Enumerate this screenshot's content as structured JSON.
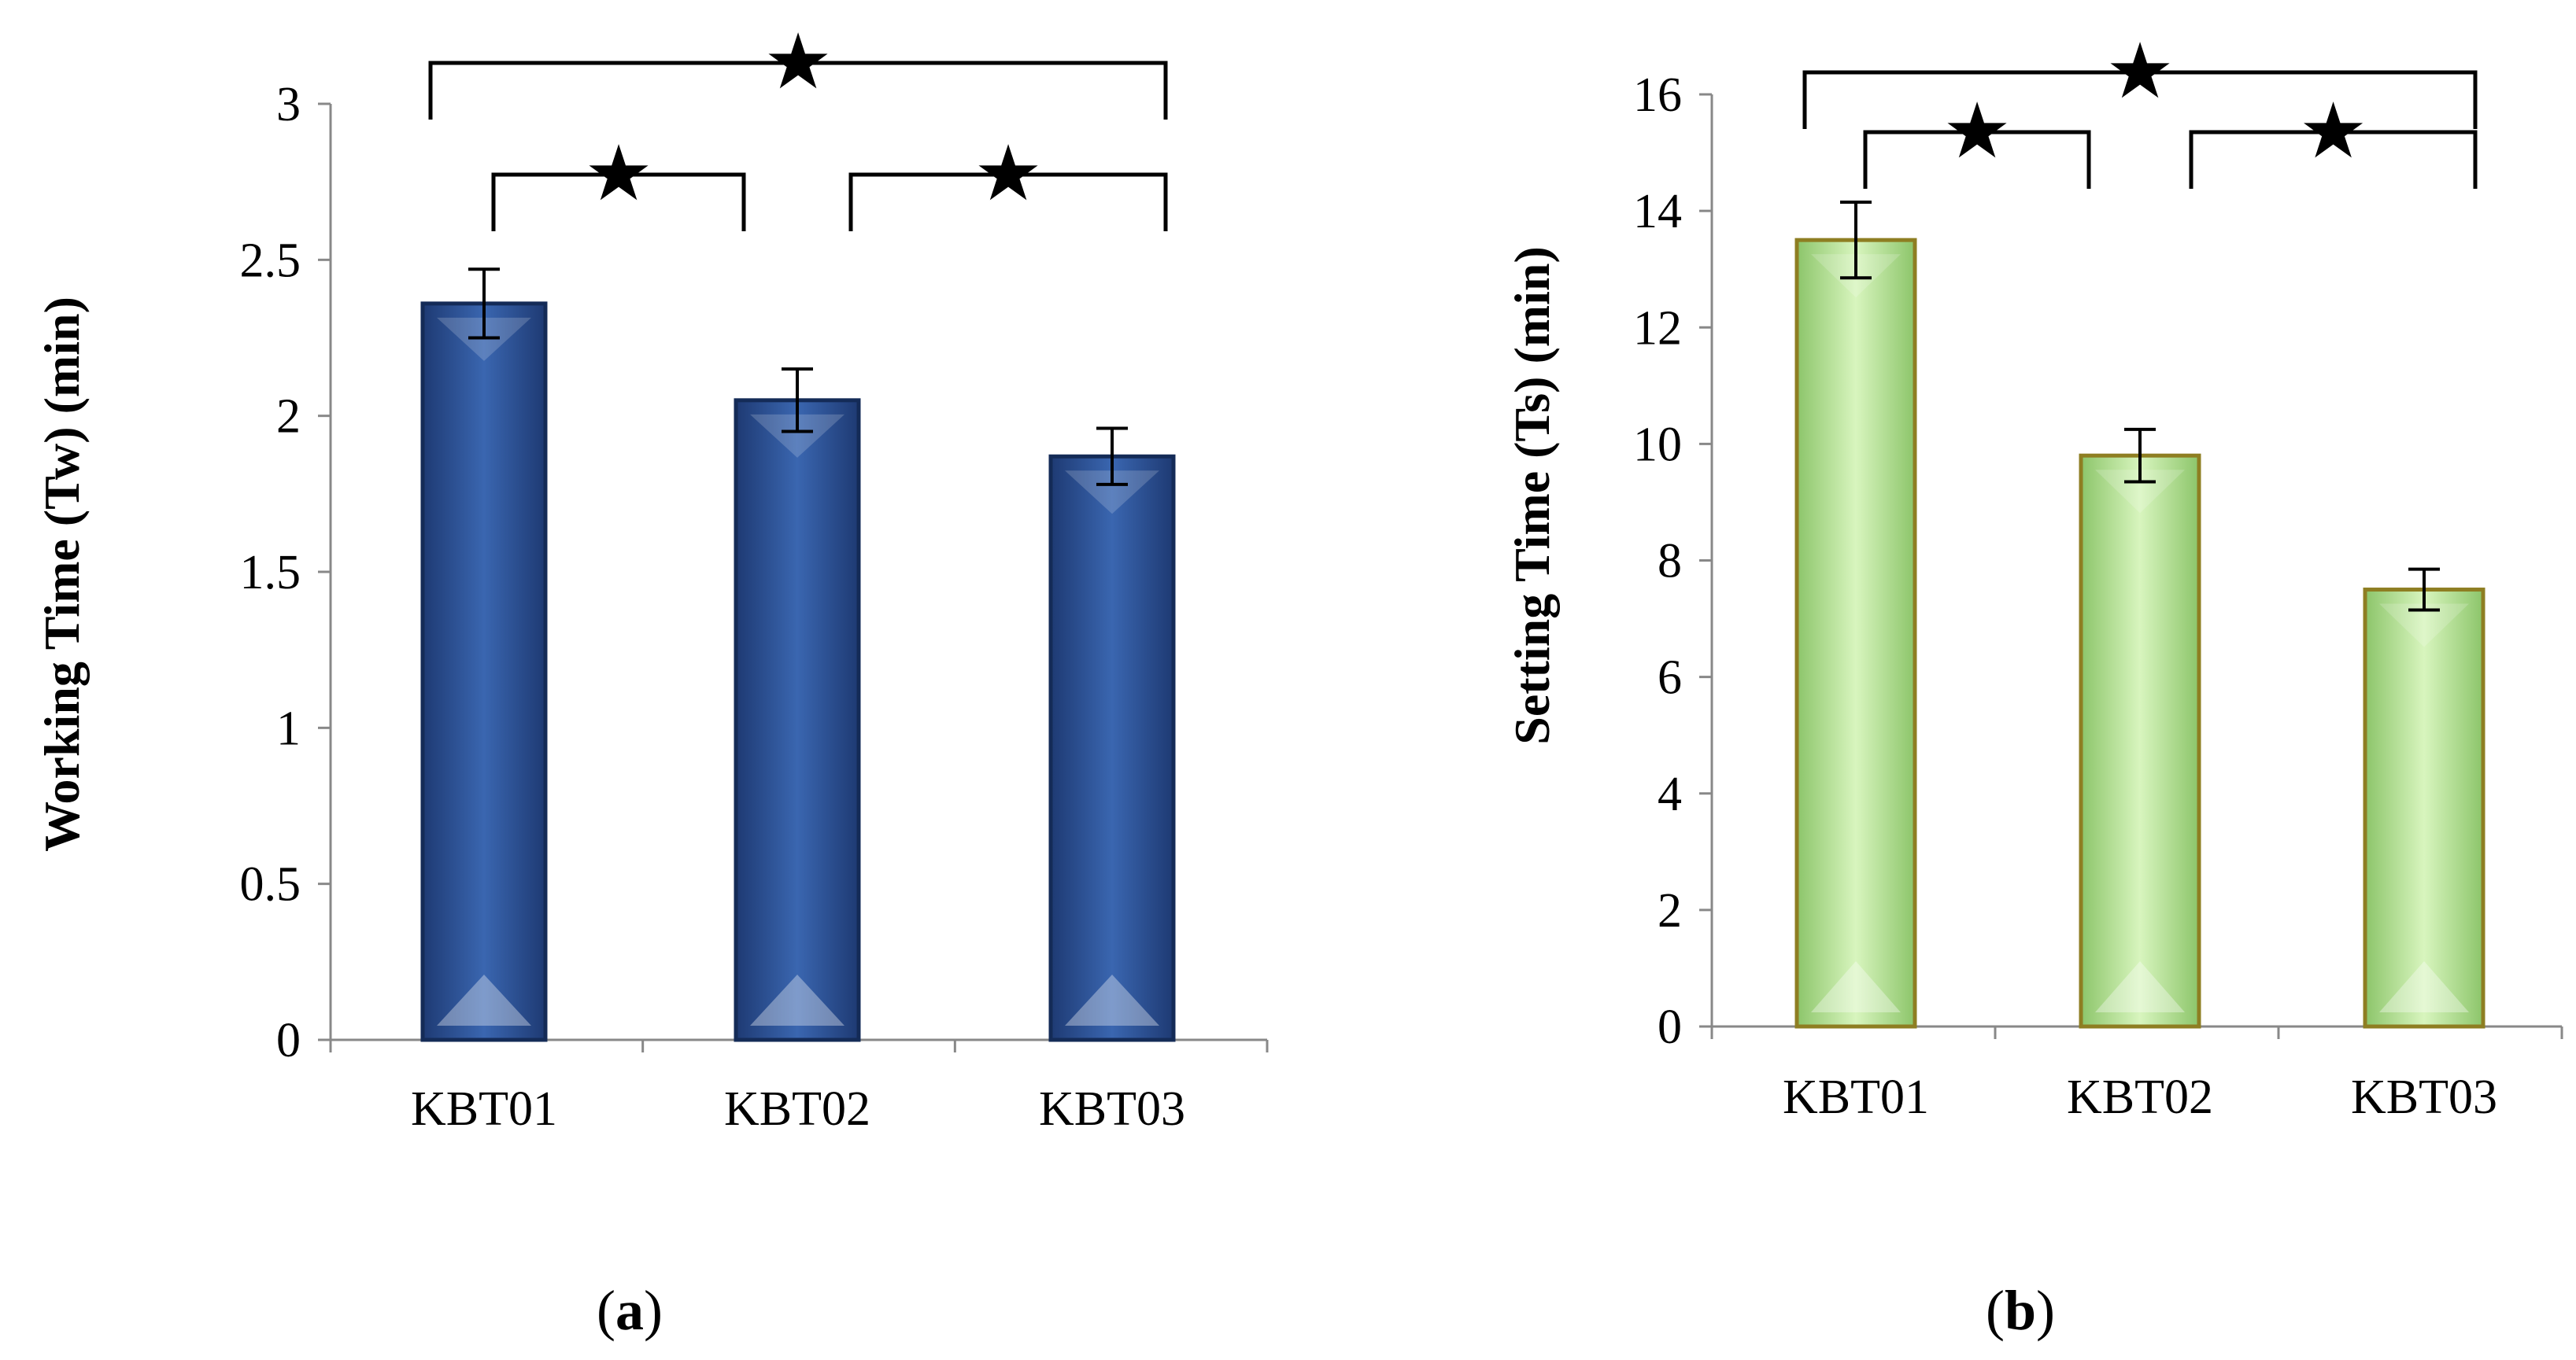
{
  "chart_data": [
    {
      "type": "bar",
      "panel_label": "a",
      "categories": [
        "KBT01",
        "KBT02",
        "KBT03"
      ],
      "values": [
        2.36,
        2.05,
        1.87
      ],
      "errors": [
        0.11,
        0.1,
        0.09
      ],
      "ylabel": "Working Time (Tw) (min)",
      "xlabel": "",
      "ylim": [
        0,
        3
      ],
      "yticks": [
        "0",
        "0.5",
        "1",
        "1.5",
        "2",
        "2.5",
        "3"
      ],
      "ytick_values": [
        0,
        0.5,
        1,
        1.5,
        2,
        2.5,
        3
      ],
      "bar_color": "#2B4C8C",
      "significance": [
        {
          "from": "KBT01",
          "to": "KBT02",
          "symbol": "★"
        },
        {
          "from": "KBT02",
          "to": "KBT03",
          "symbol": "★"
        },
        {
          "from": "KBT01",
          "to": "KBT03",
          "symbol": "★"
        }
      ]
    },
    {
      "type": "bar",
      "panel_label": "b",
      "categories": [
        "KBT01",
        "KBT02",
        "KBT03"
      ],
      "values": [
        13.5,
        9.8,
        7.5
      ],
      "errors": [
        0.65,
        0.45,
        0.35
      ],
      "ylabel": "Setting Time (Ts) (min)",
      "xlabel": "",
      "ylim": [
        0,
        16
      ],
      "yticks": [
        "0",
        "2",
        "4",
        "6",
        "8",
        "10",
        "12",
        "14",
        "16"
      ],
      "ytick_values": [
        0,
        2,
        4,
        6,
        8,
        10,
        12,
        14,
        16
      ],
      "bar_color": "#B8E59A",
      "significance": [
        {
          "from": "KBT01",
          "to": "KBT02",
          "symbol": "★"
        },
        {
          "from": "KBT02",
          "to": "KBT03",
          "symbol": "★"
        },
        {
          "from": "KBT01",
          "to": "KBT03",
          "symbol": "★"
        }
      ]
    }
  ]
}
